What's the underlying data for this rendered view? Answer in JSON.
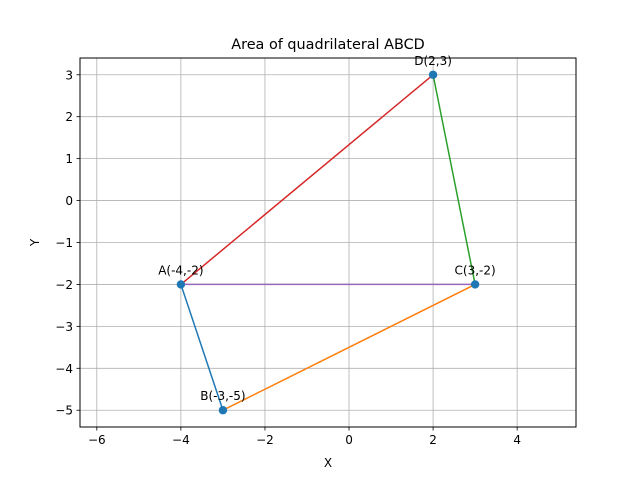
{
  "chart_data": {
    "type": "line",
    "title": "Area of quadrilateral ABCD",
    "xlabel": "X",
    "ylabel": "Y",
    "xlim": [
      -6.4,
      5.4
    ],
    "ylim": [
      -5.4,
      3.4
    ],
    "xticks": [
      -6,
      -4,
      -2,
      0,
      2,
      4
    ],
    "yticks": [
      -5,
      -4,
      -3,
      -2,
      -1,
      0,
      1,
      2,
      3
    ],
    "grid": true,
    "points": [
      {
        "name": "A",
        "x": -4,
        "y": -2,
        "label": "A(-4,-2)"
      },
      {
        "name": "B",
        "x": -3,
        "y": -5,
        "label": "B(-3,-5)"
      },
      {
        "name": "C",
        "x": 3,
        "y": -2,
        "label": "C(3,-2)"
      },
      {
        "name": "D",
        "x": 2,
        "y": 3,
        "label": "D(2,3)"
      }
    ],
    "segments": [
      {
        "from": "A",
        "to": "B",
        "color": "#1f77b4"
      },
      {
        "from": "B",
        "to": "C",
        "color": "#ff7f0e"
      },
      {
        "from": "C",
        "to": "D",
        "color": "#2ca02c"
      },
      {
        "from": "D",
        "to": "A",
        "color": "#d62728"
      },
      {
        "from": "A",
        "to": "C",
        "color": "#9467bd"
      }
    ],
    "marker_color": "#1f77b4"
  }
}
